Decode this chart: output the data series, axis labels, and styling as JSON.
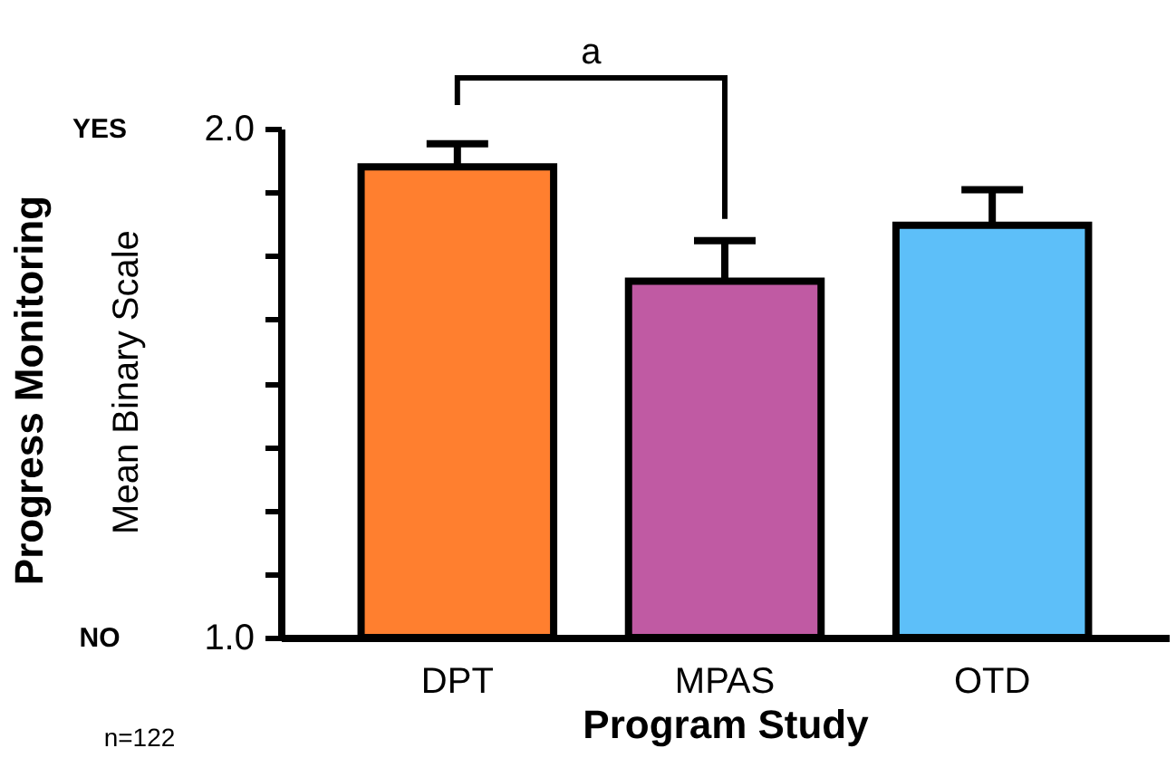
{
  "chart_data": {
    "type": "bar",
    "xlabel": "Program Study",
    "ylabel": "Progress Monitoring",
    "categories": [
      "DPT",
      "MPAS",
      "OTD"
    ],
    "values": [
      1.925,
      1.7,
      1.81
    ],
    "colors": [
      "#ff7f2f",
      "#c05aa3",
      "#5dbff9"
    ],
    "errors": [
      [
        1.925,
        1.97
      ],
      [
        1.7,
        1.78
      ],
      [
        1.81,
        1.88
      ]
    ],
    "ylim": [
      1.0,
      2.0
    ],
    "yticks": [
      {
        "value": 1.0,
        "label": "1.0"
      },
      {
        "value": 1.125,
        "label": null
      },
      {
        "value": 1.25,
        "label": null
      },
      {
        "value": 1.375,
        "label": null
      },
      {
        "value": 1.5,
        "label": null
      },
      {
        "value": 1.625,
        "label": null
      },
      {
        "value": 1.75,
        "label": null
      },
      {
        "value": 1.875,
        "label": null
      },
      {
        "value": 2.0,
        "label": "2.0"
      }
    ],
    "grid": false,
    "annotations": [
      "a",
      "YES",
      "NO",
      "Mean Binary Scale",
      "n=122"
    ]
  }
}
